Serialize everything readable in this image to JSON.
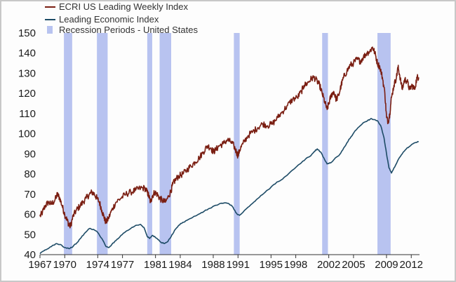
{
  "chart_data": {
    "type": "line",
    "title": "",
    "xlabel": "",
    "ylabel": "",
    "xlim": [
      1967,
      2013
    ],
    "ylim": [
      40,
      150
    ],
    "yticks": [
      40,
      50,
      60,
      70,
      80,
      90,
      100,
      110,
      120,
      130,
      140,
      150
    ],
    "xtick_labels": [
      "1967",
      "1970",
      "1974",
      "1977",
      "1981",
      "1984",
      "1988",
      "1991",
      "1995",
      "1998",
      "2002",
      "2005",
      "2009",
      "2012"
    ],
    "legend": {
      "placement": "top-left",
      "entries": [
        "ECRI US Leading Weekly Index",
        "Leading Economic Index",
        "Recession Periods - United States"
      ]
    },
    "recessions": [
      {
        "start": 1969.9,
        "end": 1970.9
      },
      {
        "start": 1973.9,
        "end": 1975.2
      },
      {
        "start": 1980.0,
        "end": 1980.6
      },
      {
        "start": 1981.5,
        "end": 1982.9
      },
      {
        "start": 1990.5,
        "end": 1991.2
      },
      {
        "start": 2001.2,
        "end": 2001.9
      },
      {
        "start": 2007.9,
        "end": 2009.5
      }
    ],
    "series": [
      {
        "name": "ECRI US Leading Weekly Index",
        "color": "#7a1e12",
        "x": [
          1967.0,
          1967.3,
          1967.6,
          1968.0,
          1968.4,
          1968.8,
          1969.1,
          1969.4,
          1969.7,
          1970.0,
          1970.3,
          1970.5,
          1970.7,
          1971.0,
          1971.4,
          1971.8,
          1972.2,
          1972.6,
          1973.0,
          1973.3,
          1973.6,
          1973.9,
          1974.2,
          1974.5,
          1974.8,
          1975.0,
          1975.3,
          1975.7,
          1976.2,
          1976.8,
          1977.4,
          1978.0,
          1978.6,
          1979.2,
          1979.7,
          1980.0,
          1980.2,
          1980.4,
          1980.6,
          1980.9,
          1981.2,
          1981.5,
          1981.8,
          1982.2,
          1982.6,
          1982.9,
          1983.1,
          1983.4,
          1983.8,
          1984.3,
          1984.8,
          1985.3,
          1985.8,
          1986.3,
          1986.8,
          1987.3,
          1987.7,
          1988.0,
          1988.3,
          1988.7,
          1989.2,
          1989.7,
          1990.1,
          1990.5,
          1990.8,
          1991.0,
          1991.2,
          1991.6,
          1992.2,
          1992.8,
          1993.4,
          1994.0,
          1994.6,
          1995.2,
          1995.8,
          1996.4,
          1997.0,
          1997.6,
          1998.2,
          1998.7,
          1999.0,
          1999.4,
          1999.8,
          2000.2,
          2000.6,
          2000.9,
          2001.2,
          2001.5,
          2001.8,
          2002.0,
          2002.3,
          2002.6,
          2002.9,
          2003.2,
          2003.5,
          2003.8,
          2004.2,
          2004.6,
          2005.0,
          2005.4,
          2005.8,
          2006.2,
          2006.6,
          2007.0,
          2007.3,
          2007.6,
          2007.9,
          2008.2,
          2008.5,
          2008.8,
          2009.0,
          2009.2,
          2009.4,
          2009.6,
          2009.9,
          2010.2,
          2010.4,
          2010.6,
          2010.9,
          2011.2,
          2011.5,
          2011.8,
          2012.1,
          2012.4,
          2012.7,
          2012.9
        ],
        "values": [
          59,
          61,
          64,
          66,
          65,
          67,
          70,
          68,
          64,
          60,
          57,
          55,
          54,
          59,
          62,
          64,
          66,
          68,
          70,
          71,
          70,
          68,
          66,
          62,
          58,
          56,
          58,
          62,
          66,
          68,
          70,
          71,
          72,
          73,
          73,
          71,
          69,
          66,
          69,
          71,
          70,
          68,
          67,
          66,
          69,
          72,
          75,
          77,
          79,
          80,
          82,
          84,
          86,
          88,
          91,
          94,
          93,
          91,
          92,
          94,
          95,
          97,
          96,
          94,
          91,
          89,
          92,
          95,
          99,
          101,
          103,
          105,
          104,
          105,
          108,
          111,
          114,
          117,
          118,
          121,
          124,
          125,
          127,
          128,
          126,
          124,
          120,
          116,
          112,
          115,
          119,
          121,
          117,
          119,
          124,
          128,
          131,
          134,
          135,
          137,
          136,
          138,
          140,
          141,
          143,
          140,
          135,
          133,
          128,
          120,
          108,
          106,
          110,
          118,
          124,
          128,
          133,
          129,
          122,
          127,
          126,
          122,
          124,
          122,
          128,
          128
        ]
      },
      {
        "name": "Leading Economic Index",
        "color": "#1d4b66",
        "x": [
          1967.0,
          1967.5,
          1968.0,
          1968.5,
          1969.0,
          1969.5,
          1970.0,
          1970.5,
          1971.0,
          1971.5,
          1972.0,
          1972.5,
          1973.0,
          1973.5,
          1974.0,
          1974.5,
          1975.0,
          1975.3,
          1975.7,
          1976.2,
          1976.8,
          1977.4,
          1978.0,
          1978.6,
          1979.2,
          1979.6,
          1980.0,
          1980.3,
          1980.6,
          1980.9,
          1981.3,
          1981.7,
          1982.1,
          1982.5,
          1982.9,
          1983.3,
          1983.8,
          1984.3,
          1984.8,
          1985.5,
          1986.2,
          1986.9,
          1987.6,
          1988.3,
          1989.0,
          1989.7,
          1990.2,
          1990.6,
          1990.9,
          1991.2,
          1991.6,
          1992.2,
          1992.9,
          1993.6,
          1994.3,
          1995.0,
          1995.7,
          1996.4,
          1997.1,
          1997.8,
          1998.5,
          1999.2,
          1999.8,
          2000.2,
          2000.6,
          2001.0,
          2001.4,
          2001.8,
          2002.2,
          2002.7,
          2003.2,
          2003.7,
          2004.2,
          2004.7,
          2005.2,
          2005.7,
          2006.2,
          2006.7,
          2007.1,
          2007.5,
          2007.9,
          2008.3,
          2008.7,
          2009.0,
          2009.3,
          2009.6,
          2010.0,
          2010.4,
          2010.9,
          2011.4,
          2011.9,
          2012.4,
          2012.9
        ],
        "values": [
          40.5,
          42,
          43,
          44.5,
          45.5,
          45,
          43.5,
          43,
          44,
          46,
          48.5,
          51,
          53,
          52.5,
          51,
          48,
          44,
          43.5,
          45,
          47,
          49.5,
          51.5,
          53,
          54.5,
          55,
          53.5,
          49,
          48,
          49.5,
          49,
          47.5,
          46,
          45.5,
          46.5,
          49,
          52,
          54.5,
          56,
          57,
          58.5,
          60,
          61.5,
          63,
          64.5,
          65.5,
          65.5,
          64.5,
          62,
          60,
          59.5,
          61,
          63.5,
          66,
          68.5,
          71,
          73.5,
          76,
          77.5,
          80,
          82.5,
          85,
          87.5,
          89,
          91,
          92.5,
          91,
          88,
          85,
          85.5,
          87.5,
          89,
          92,
          95.5,
          98.5,
          101.5,
          103.5,
          105.5,
          106.5,
          107.5,
          107,
          106.5,
          104,
          98,
          90,
          83,
          80.5,
          83.5,
          87,
          90,
          92.5,
          94,
          95.5,
          96
        ]
      }
    ]
  }
}
